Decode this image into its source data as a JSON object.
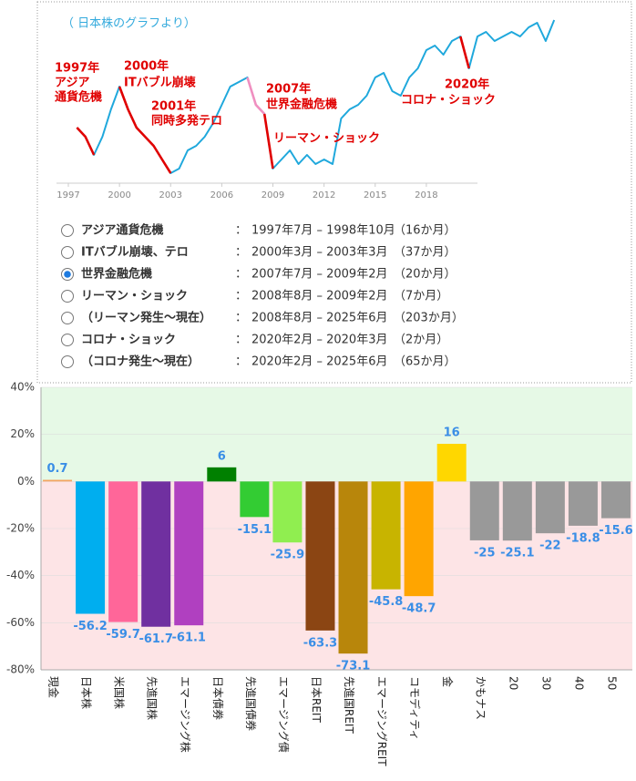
{
  "subtitle": "（ 日本株のグラフより）",
  "line_chart": {
    "type": "line",
    "x": [
      1997.5,
      1998,
      1998.5,
      1999,
      1999.5,
      2000,
      2000.5,
      2001,
      2001.5,
      2002,
      2002.5,
      2003,
      2003.5,
      2004,
      2004.5,
      2005,
      2005.5,
      2006,
      2006.5,
      2007,
      2007.5,
      2008,
      2008.5,
      2009,
      2009.5,
      2010,
      2010.5,
      2011,
      2011.5,
      2012,
      2012.5,
      2013,
      2013.5,
      2014,
      2014.5,
      2015,
      2015.5,
      2016,
      2016.5,
      2017,
      2017.5,
      2018,
      2018.5,
      2019,
      2019.5,
      2020,
      2020.5,
      2021,
      2021.5,
      2022,
      2022.5,
      2023,
      2023.5,
      2024,
      2024.5,
      2025,
      2025.5
    ],
    "xlim": [
      1996.6,
      2026
    ],
    "xticks": [
      1997,
      2000,
      2003,
      2006,
      2009,
      2012,
      2015,
      2018
    ],
    "ylim": [
      0,
      180
    ],
    "series": [
      {
        "color": "#1fa8dc",
        "values": [
          60,
          50,
          30,
          50,
          80,
          105,
          80,
          60,
          50,
          40,
          25,
          10,
          15,
          35,
          40,
          50,
          65,
          85,
          105,
          110,
          115,
          85,
          75,
          15,
          25,
          35,
          20,
          30,
          20,
          25,
          20,
          70,
          80,
          85,
          95,
          115,
          120,
          100,
          95,
          115,
          125,
          145,
          150,
          140,
          155,
          160,
          125,
          160,
          165,
          155,
          160,
          165,
          160,
          170,
          175,
          155,
          178
        ]
      },
      {
        "color": "#f08fc0",
        "values": [
          null,
          null,
          null,
          null,
          null,
          null,
          null,
          null,
          null,
          null,
          null,
          null,
          null,
          null,
          null,
          null,
          null,
          null,
          null,
          null,
          115,
          85,
          75,
          null,
          null,
          null,
          null,
          null,
          null,
          null,
          null,
          null,
          null,
          null,
          null,
          null,
          null,
          null,
          null,
          null,
          null,
          null,
          null,
          null,
          null,
          null,
          null,
          null,
          null,
          null,
          null,
          null,
          null,
          null,
          null,
          null,
          null
        ]
      },
      {
        "color": "#e00000",
        "values": [
          60,
          50,
          30,
          null,
          null,
          105,
          80,
          60,
          50,
          40,
          25,
          10,
          null,
          null,
          null,
          null,
          null,
          null,
          null,
          null,
          null,
          null,
          75,
          15,
          null,
          null,
          null,
          null,
          null,
          null,
          null,
          null,
          null,
          null,
          null,
          null,
          null,
          null,
          null,
          null,
          null,
          null,
          null,
          null,
          null,
          160,
          125,
          null,
          null,
          null,
          null,
          null,
          null,
          null,
          null,
          null,
          null
        ]
      }
    ],
    "annotations": [
      [
        "1997年",
        "アジア",
        "通貨危機"
      ],
      [
        "2000年",
        "ITバブル崩壊"
      ],
      [
        "2001年",
        "同時多発テロ"
      ],
      [
        "2007年",
        "世界金融危機"
      ],
      [
        "リーマン・ショック"
      ],
      [
        "2020年",
        "コロナ・ショック"
      ]
    ]
  },
  "options": {
    "separator": "：",
    "selected": 2,
    "items": [
      {
        "name": "アジア通貨危機",
        "period": "1997年7月 – 1998年10月",
        "months": "（16か月）"
      },
      {
        "name": "ITバブル崩壊、テロ",
        "period": "2000年3月 – 2003年3月",
        "months": "（37か月）"
      },
      {
        "name": "世界金融危機",
        "period": "2007年7月 – 2009年2月",
        "months": "（20か月）"
      },
      {
        "name": "リーマン・ショック",
        "period": "2008年8月 – 2009年2月",
        "months": "（7か月）"
      },
      {
        "name": "（リーマン発生～現在）",
        "period": "2008年8月 – 2025年6月",
        "months": "（203か月）"
      },
      {
        "name": "コロナ・ショック",
        "period": "2020年2月 – 2020年3月",
        "months": "（2か月）"
      },
      {
        "name": "（コロナ発生～現在）",
        "period": "2020年2月 – 2025年6月",
        "months": "（65か月）"
      }
    ]
  },
  "chart_data": {
    "type": "bar",
    "categories": [
      "現金",
      "日本株",
      "米国株",
      "先進国株",
      "エマージング株",
      "日本債券",
      "先進国債券",
      "エマージング債",
      "日本REIT",
      "先進国REIT",
      "エマージングREIT",
      "コモディティ",
      "金",
      "かもナス",
      "20",
      "30",
      "40",
      "50"
    ],
    "values": [
      0.7,
      -56.2,
      -59.7,
      -61.7,
      -61.1,
      6,
      -15.1,
      -25.9,
      -63.3,
      -73.1,
      -45.8,
      -48.7,
      16,
      -25,
      -25.1,
      -22,
      -18.8,
      -15.6
    ],
    "colors": [
      "#f4a460",
      "#00aeef",
      "#ff6699",
      "#7030a0",
      "#b040c0",
      "#008000",
      "#33cc33",
      "#90ee50",
      "#8b4513",
      "#b8860b",
      "#c8b400",
      "#ffa500",
      "#ffd700",
      "#999999",
      "#999999",
      "#999999",
      "#999999",
      "#999999"
    ],
    "ylim": [
      -80,
      40
    ],
    "yticks": [
      {
        "value": -80,
        "label": "-80%"
      },
      {
        "value": -60,
        "label": "-60%"
      },
      {
        "value": -40,
        "label": "-40%"
      },
      {
        "value": -20,
        "label": "-20%"
      },
      {
        "value": 0,
        "label": "0%"
      },
      {
        "value": 20,
        "label": "20%"
      },
      {
        "value": 40,
        "label": "40%"
      }
    ],
    "positive_bg": "#e6f9e6",
    "negative_bg": "#fde4e6",
    "grid": true
  }
}
